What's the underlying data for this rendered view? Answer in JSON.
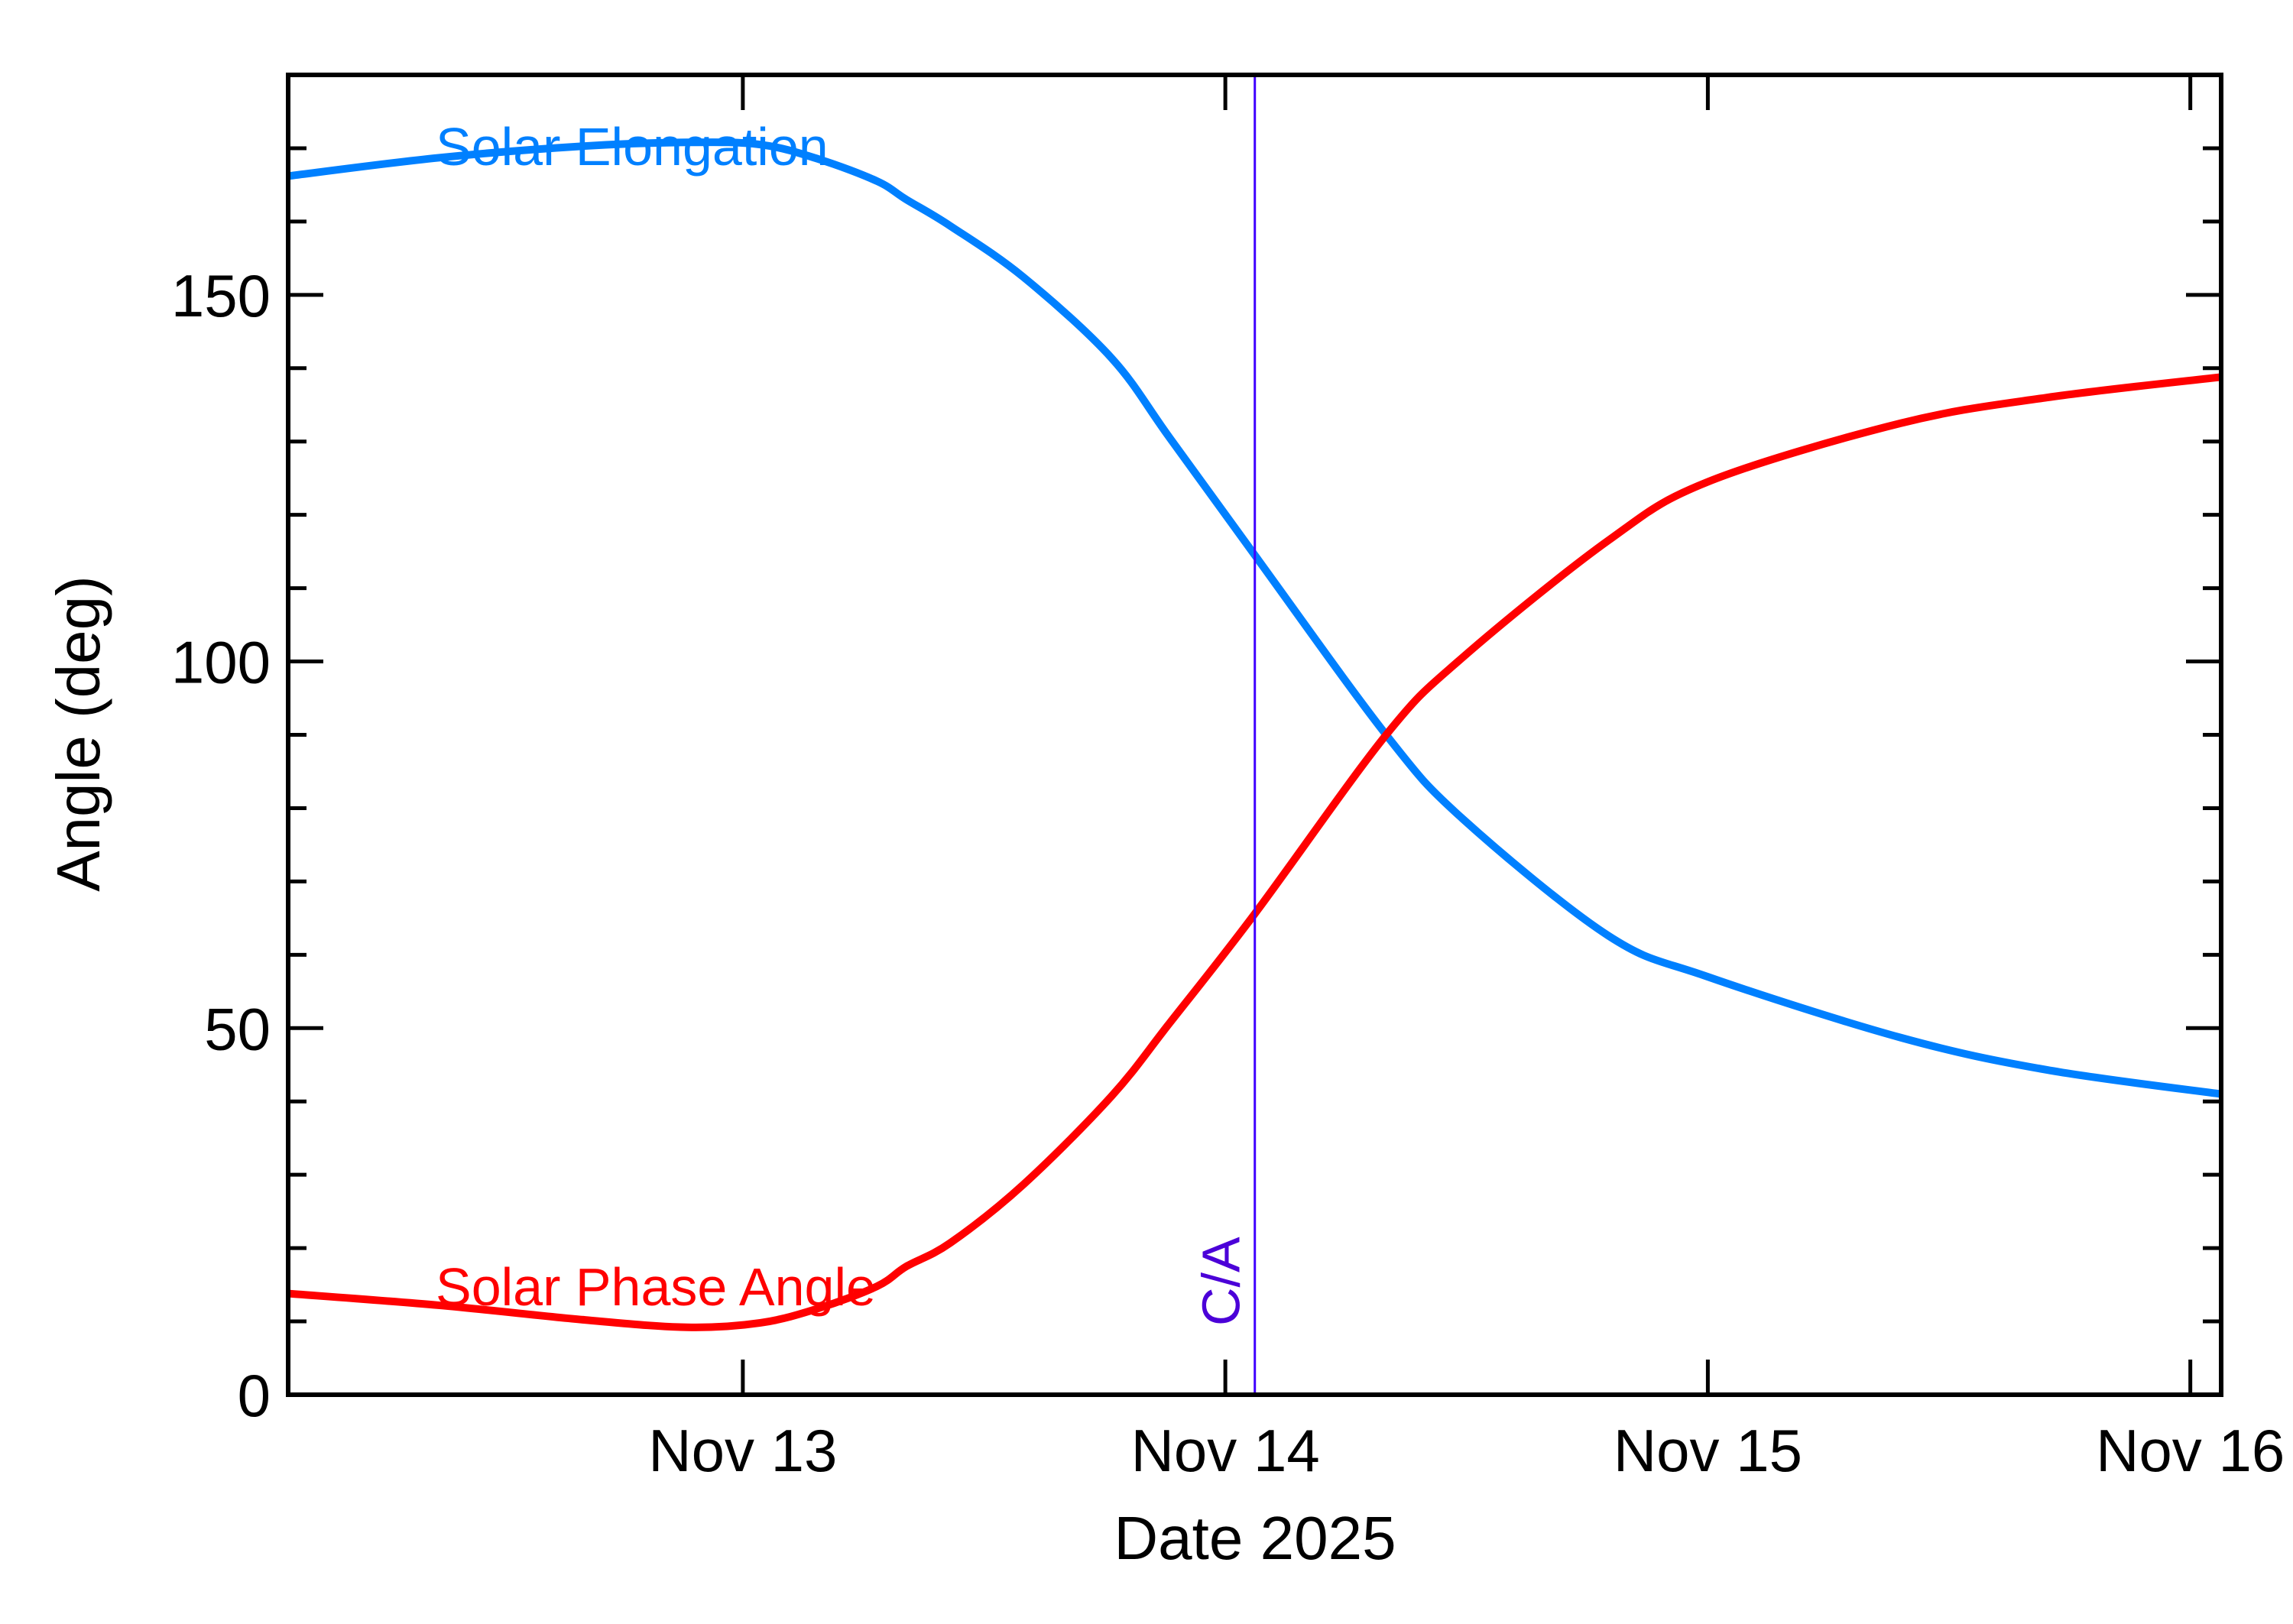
{
  "chart_data": {
    "type": "line",
    "title": "",
    "xlabel": "Date 2025",
    "ylabel": "Angle (deg)",
    "xlim": [
      "2025-11-12T01:23",
      "2025-11-16T01:32"
    ],
    "ylim": [
      0,
      180
    ],
    "x_ticks": [
      {
        "date": "2025-11-13T00:00",
        "label": "Nov 13"
      },
      {
        "date": "2025-11-14T00:00",
        "label": "Nov 14"
      },
      {
        "date": "2025-11-15T00:00",
        "label": "Nov 15"
      },
      {
        "date": "2025-11-16T00:00",
        "label": "Nov 16"
      }
    ],
    "y_ticks": [
      0,
      50,
      100,
      150
    ],
    "y_minor_step": 10,
    "grid": false,
    "x": [
      "2025-11-12T01:23",
      "2025-11-12T08:52",
      "2025-11-12T16:09",
      "2025-11-12T21:14",
      "2025-11-13T00:52",
      "2025-11-13T03:47",
      "2025-11-13T06:41",
      "2025-11-13T08:08",
      "2025-11-13T10:19",
      "2025-11-13T13:58",
      "2025-11-13T18:20",
      "2025-11-13T21:14",
      "2025-11-14T01:28",
      "2025-11-14T08:00",
      "2025-11-14T11:47",
      "2025-11-14T19:03",
      "2025-11-15T00:00",
      "2025-11-15T09:36",
      "2025-11-15T16:52",
      "2025-11-16T01:32"
    ],
    "series": [
      {
        "name": "Solar Elongation",
        "color": "#0080ff",
        "values": [
          166.2,
          168.7,
          170.3,
          170.8,
          170.5,
          168.5,
          165.5,
          163.0,
          159.4,
          152.4,
          141.4,
          130.5,
          114.5,
          90.0,
          78.6,
          62.6,
          57.0,
          48.7,
          44.3,
          41.0
        ]
      },
      {
        "name": "Solar Phase Angle",
        "color": "#ff0000",
        "values": [
          13.8,
          12.2,
          10.2,
          9.2,
          9.8,
          11.8,
          14.8,
          17.5,
          20.7,
          28.7,
          40.7,
          50.7,
          65.6,
          90.0,
          100.5,
          116.5,
          124.5,
          132.5,
          136.0,
          138.8
        ]
      }
    ],
    "annotations": [
      {
        "text": "C/A",
        "date": "2025-11-14T01:28",
        "color": "#4b00d8",
        "line_color": "#4000ff"
      }
    ]
  }
}
